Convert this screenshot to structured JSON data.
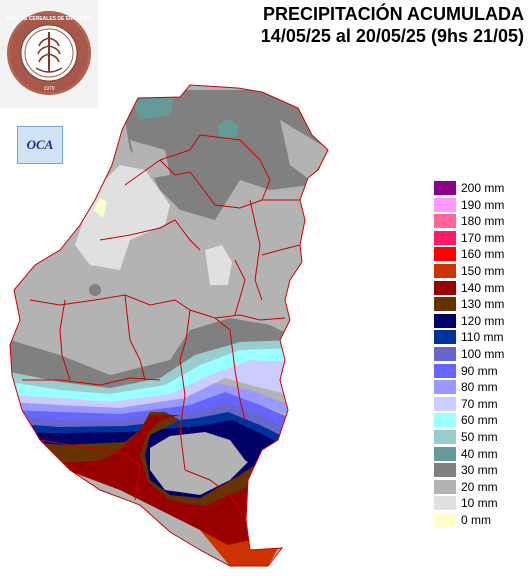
{
  "title": {
    "line1": "PRECIPITACIÓN ACUMULADA",
    "line2": "14/05/25 al 20/05/25 (9hs 21/05)"
  },
  "logo": {
    "ring_text": "BOLSA DE CEREALES DE ENTRE RÍOS",
    "year": "1979"
  },
  "oca_logo": {
    "text": "OCA"
  },
  "legend": [
    {
      "label": "200 mm",
      "color": "#8b008b"
    },
    {
      "label": "190 mm",
      "color": "#ff99ff"
    },
    {
      "label": "180 mm",
      "color": "#ff6699"
    },
    {
      "label": "170 mm",
      "color": "#ff1a66"
    },
    {
      "label": "160 mm",
      "color": "#ff0000"
    },
    {
      "label": "150 mm",
      "color": "#cc3300"
    },
    {
      "label": "140 mm",
      "color": "#990000"
    },
    {
      "label": "130 mm",
      "color": "#663300"
    },
    {
      "label": "120 mm",
      "color": "#000066"
    },
    {
      "label": "110 mm",
      "color": "#003399"
    },
    {
      "label": "100 mm",
      "color": "#6666cc"
    },
    {
      "label": "90 mm",
      "color": "#6666ff"
    },
    {
      "label": "80 mm",
      "color": "#9999ff"
    },
    {
      "label": "70 mm",
      "color": "#ccccff"
    },
    {
      "label": "60 mm",
      "color": "#99ffff"
    },
    {
      "label": "50 mm",
      "color": "#99cccc"
    },
    {
      "label": "40 mm",
      "color": "#669999"
    },
    {
      "label": "30 mm",
      "color": "#808080"
    },
    {
      "label": "20 mm",
      "color": "#b3b3b3"
    },
    {
      "label": "10 mm",
      "color": "#e0e0e0"
    },
    {
      "label": "0 mm",
      "color": "#ffffcc"
    }
  ]
}
